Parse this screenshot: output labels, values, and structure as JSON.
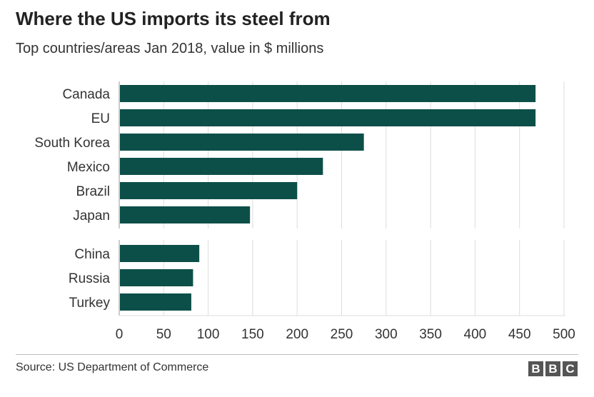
{
  "title": "Where the US imports its steel from",
  "subtitle": "Top countries/areas Jan 2018, value in $ millions",
  "source": "Source: US Department of Commerce",
  "logo": {
    "text": "BBC",
    "letters": [
      "B",
      "B",
      "C"
    ],
    "color": "#555555"
  },
  "colors": {
    "bar": "#0c4f48",
    "grid": "#dddddd",
    "axis": "#999999",
    "label": "#333333"
  },
  "chart_data": {
    "type": "bar",
    "orientation": "horizontal",
    "categories": [
      "Canada",
      "EU",
      "South Korea",
      "Mexico",
      "Brazil",
      "Japan",
      "China",
      "Russia",
      "Turkey"
    ],
    "groups": [
      [
        "Canada",
        "EU",
        "South Korea",
        "Mexico",
        "Brazil",
        "Japan"
      ],
      [
        "China",
        "Russia",
        "Turkey"
      ]
    ],
    "values": [
      468,
      468,
      275,
      229,
      200,
      147,
      90,
      83,
      81
    ],
    "xlim": [
      0,
      500
    ],
    "xticks": [
      0,
      50,
      100,
      150,
      200,
      250,
      300,
      350,
      400,
      450,
      500
    ],
    "grid": true,
    "legend": "none"
  }
}
